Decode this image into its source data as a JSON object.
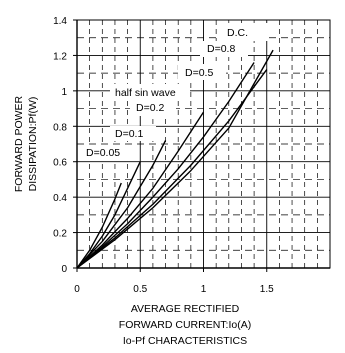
{
  "chart_data": {
    "type": "line",
    "title": "Io-Pf CHARACTERISTICS",
    "xlabel": [
      "AVERAGE RECTIFIED",
      "FORWARD CURRENT:Io(A)"
    ],
    "ylabel": [
      "FORWARD POWER",
      "DISSIPATION:Pf(W)"
    ],
    "xlim": [
      0,
      2
    ],
    "ylim": [
      0,
      1.4
    ],
    "x_ticks": [
      0,
      0.5,
      1,
      1.5
    ],
    "x_tick_labels": [
      "0",
      "0.5",
      "1",
      "1.5"
    ],
    "y_ticks": [
      0,
      0.2,
      0.4,
      0.6,
      0.8,
      1,
      1.2,
      1.4
    ],
    "y_tick_labels": [
      "0",
      "0.2",
      "0.4",
      "0.6",
      "0.8",
      "1",
      "1.2",
      "1.4"
    ],
    "grid": "dashed",
    "series": [
      {
        "name": "D=0.05",
        "x": [
          0,
          0.1,
          0.2,
          0.3,
          0.35
        ],
        "y": [
          0,
          0.1,
          0.23,
          0.39,
          0.48
        ]
      },
      {
        "name": "D=0.1",
        "x": [
          0,
          0.1,
          0.2,
          0.3,
          0.4,
          0.5
        ],
        "y": [
          0,
          0.08,
          0.18,
          0.3,
          0.45,
          0.6
        ]
      },
      {
        "name": "D=0.2",
        "x": [
          0,
          0.2,
          0.4,
          0.6,
          0.7
        ],
        "y": [
          0,
          0.15,
          0.34,
          0.58,
          0.72
        ]
      },
      {
        "name": "half sin wave",
        "x": [
          0,
          0.2,
          0.4,
          0.6,
          0.8,
          1.0
        ],
        "y": [
          0,
          0.13,
          0.28,
          0.45,
          0.66,
          0.88
        ]
      },
      {
        "name": "D=0.5",
        "x": [
          0,
          0.2,
          0.4,
          0.6,
          0.8,
          1.0,
          1.2,
          1.4
        ],
        "y": [
          0,
          0.12,
          0.25,
          0.4,
          0.56,
          0.74,
          0.94,
          1.16
        ]
      },
      {
        "name": "D=0.8",
        "x": [
          0,
          0.3,
          0.6,
          0.9,
          1.2,
          1.5
        ],
        "y": [
          0,
          0.17,
          0.36,
          0.58,
          0.83,
          1.12
        ]
      },
      {
        "name": "D.C.",
        "x": [
          0,
          0.3,
          0.6,
          0.9,
          1.2,
          1.55
        ],
        "y": [
          0,
          0.16,
          0.34,
          0.55,
          0.79,
          1.23
        ]
      }
    ],
    "annotations": [
      "D=0.05",
      "D=0.1",
      "D=0.2",
      "half sin wave",
      "D=0.5",
      "D=0.8",
      "D.C."
    ]
  }
}
